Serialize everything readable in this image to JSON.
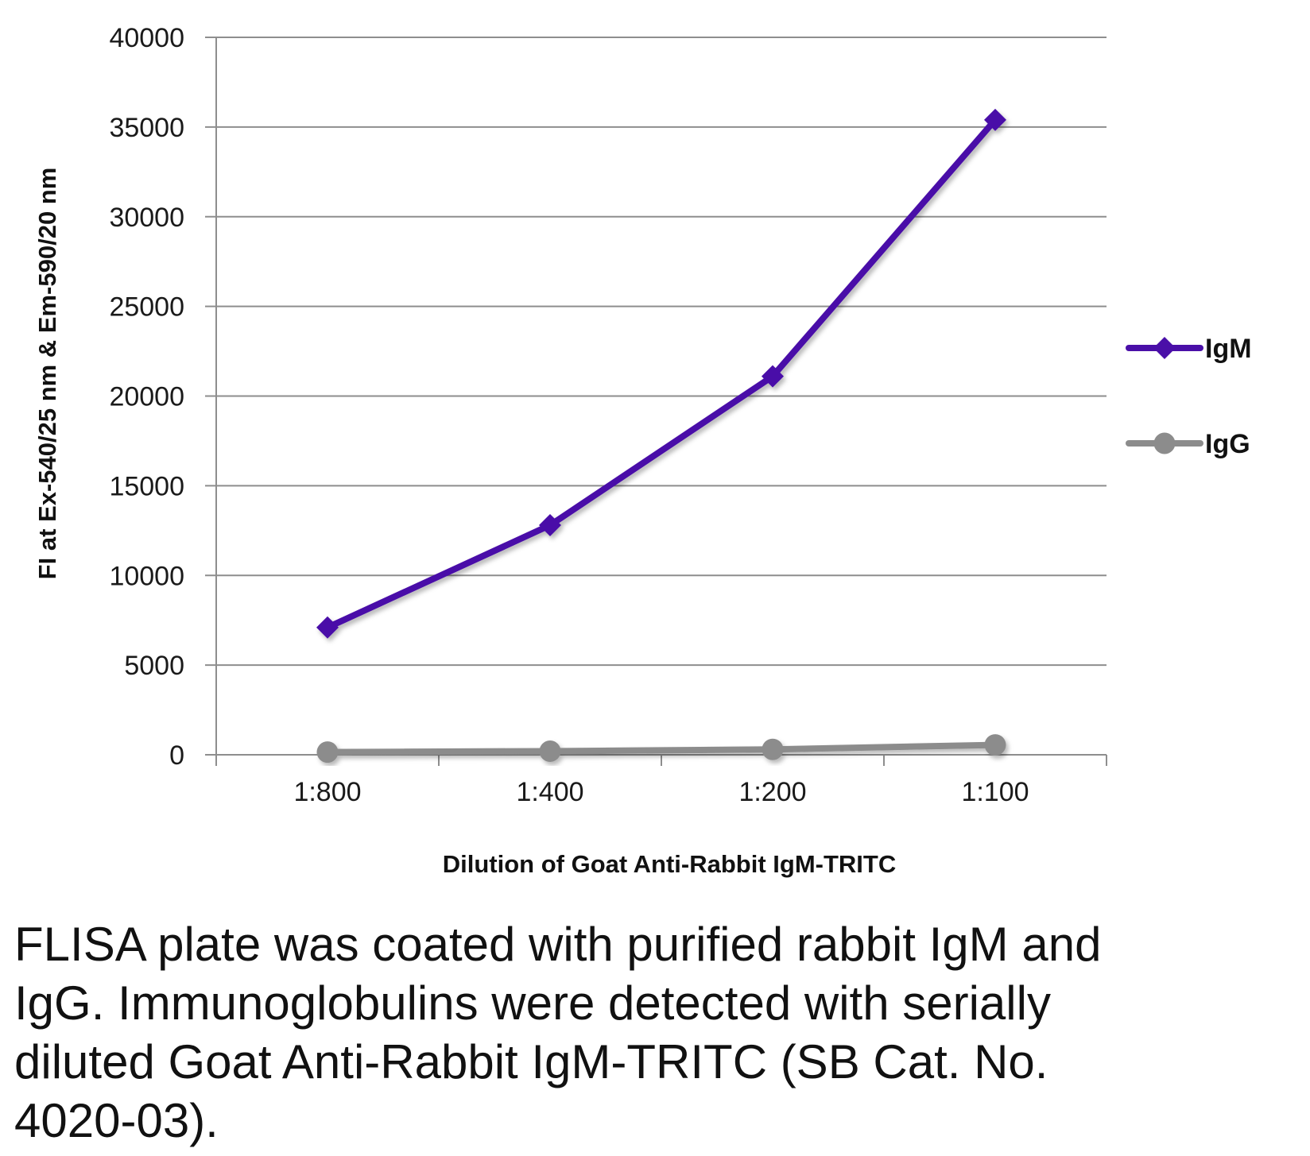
{
  "chart_data": {
    "type": "line",
    "categories": [
      "1:800",
      "1:400",
      "1:200",
      "1:100"
    ],
    "series": [
      {
        "name": "IgM",
        "values": [
          7100,
          12800,
          21100,
          35400
        ],
        "color": "#4a0fa8",
        "marker": "diamond"
      },
      {
        "name": "IgG",
        "values": [
          150,
          200,
          300,
          550
        ],
        "color": "#8c8c8c",
        "marker": "circle"
      }
    ],
    "xlabel": "Dilution of Goat Anti-Rabbit IgM-TRITC",
    "ylabel": "FI at Ex-540/25 nm & Em-590/20 nm",
    "ylim": [
      0,
      40000
    ],
    "yticks": [
      "0",
      "5000",
      "10000",
      "15000",
      "20000",
      "25000",
      "30000",
      "35000",
      "40000"
    ],
    "grid": "horizontal",
    "legend": "right"
  },
  "caption": "FLISA plate was coated with purified rabbit IgM and IgG.  Immunoglobulins were detected with serially diluted Goat Anti-Rabbit IgM-TRITC (SB Cat. No. 4020-03)."
}
